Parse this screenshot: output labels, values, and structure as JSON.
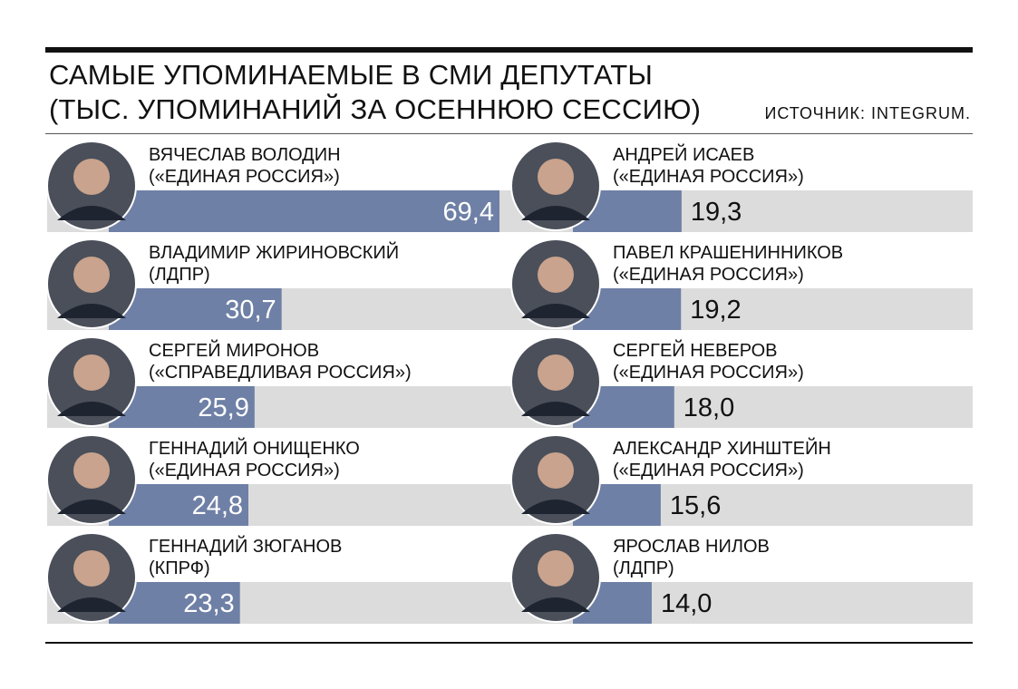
{
  "header": {
    "title_line1": "САМЫЕ УПОМИНАЕМЫЕ В СМИ ДЕПУТАТЫ",
    "title_line2": "(ТЫС. УПОМИНАНИЙ ЗА ОСЕННЮЮ СЕССИЮ)",
    "source": "ИСТОЧНИК: INTEGRUM."
  },
  "colors": {
    "bar": "#6f80a6",
    "track": "#dcdcdc",
    "text": "#111111"
  },
  "chart_data": {
    "type": "bar",
    "title": "САМЫЕ УПОМИНАЕМЫЕ В СМИ ДЕПУТАТЫ (ТЫС. УПОМИНАНИЙ ЗА ОСЕННЮЮ СЕССИЮ)",
    "unit": "тыс. упоминаний",
    "xlim": [
      0,
      70
    ],
    "columns": [
      {
        "items": [
          {
            "name": "ВЯЧЕСЛАВ ВОЛОДИН",
            "party": "(«ЕДИНАЯ РОССИЯ»)",
            "value": 69.4,
            "label": "69,4"
          },
          {
            "name": "ВЛАДИМИР ЖИРИНОВСКИЙ",
            "party": "(ЛДПР)",
            "value": 30.7,
            "label": "30,7"
          },
          {
            "name": "СЕРГЕЙ МИРОНОВ",
            "party": "(«СПРАВЕДЛИВАЯ РОССИЯ»)",
            "value": 25.9,
            "label": "25,9"
          },
          {
            "name": "ГЕННАДИЙ ОНИЩЕНКО",
            "party": "(«ЕДИНАЯ РОССИЯ»)",
            "value": 24.8,
            "label": "24,8"
          },
          {
            "name": "ГЕННАДИЙ ЗЮГАНОВ",
            "party": "(КПРФ)",
            "value": 23.3,
            "label": "23,3"
          }
        ]
      },
      {
        "items": [
          {
            "name": "АНДРЕЙ ИСАЕВ",
            "party": "(«ЕДИНАЯ РОССИЯ»)",
            "value": 19.3,
            "label": "19,3"
          },
          {
            "name": "ПАВЕЛ КРАШЕНИННИКОВ",
            "party": "(«ЕДИНАЯ РОССИЯ»)",
            "value": 19.2,
            "label": "19,2"
          },
          {
            "name": "СЕРГЕЙ НЕВЕРОВ",
            "party": "(«ЕДИНАЯ РОССИЯ»)",
            "value": 18.0,
            "label": "18,0"
          },
          {
            "name": "АЛЕКСАНДР ХИНШТЕЙН",
            "party": "(«ЕДИНАЯ РОССИЯ»)",
            "value": 15.6,
            "label": "15,6"
          },
          {
            "name": "ЯРОСЛАВ НИЛОВ",
            "party": "(ЛДПР)",
            "value": 14.0,
            "label": "14,0"
          }
        ]
      }
    ]
  }
}
